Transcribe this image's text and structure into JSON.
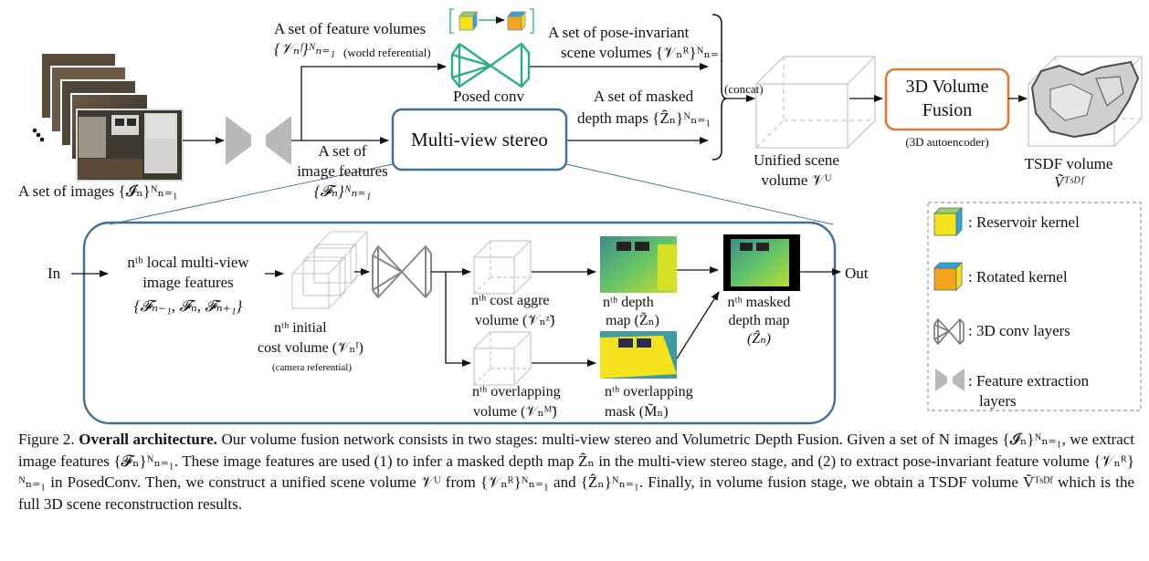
{
  "top": {
    "images_label": "A set of images {𝓘ₙ}ᴺₙ₌₁",
    "feature_volumes_line1": "A set of feature volumes",
    "feature_volumes_line2": "{𝒱ₙᶠ}ᴺₙ₌₁",
    "feature_volumes_note": "(world referential)",
    "posed_conv": "Posed conv",
    "pose_invariant_line1": "A set of pose-invariant",
    "pose_invariant_line2": "scene volumes {𝒱ₙᴿ}ᴺₙ₌₁",
    "masked_depth_line1": "A set of masked",
    "masked_depth_line2": "depth maps {Ẑₙ}ᴺₙ₌₁",
    "image_features_line1": "A set of",
    "image_features_line2": "image features",
    "image_features_line3": "{𝓕ₙ}ᴺₙ₌₁",
    "mvs_box": "Multi-view stereo",
    "concat": "(concat)",
    "unified_line1": "Unified scene",
    "unified_line2": "volume 𝒱ᵁ",
    "fusion_box_line1": "3D Volume",
    "fusion_box_line2": "Fusion",
    "autoencoder": "(3D autoencoder)",
    "tsdf_line1": "TSDF volume",
    "tsdf_line2": "Ṽᵀˢᴰᶠ"
  },
  "detail": {
    "in_label": "In",
    "out_label": "Out",
    "local_feat_line1": "nᵗʰ local multi-view",
    "local_feat_line2": "image features",
    "local_feat_line3": "{𝓕ₙ₋₁, 𝓕ₙ, 𝓕ₙ₊₁}",
    "initial_cost_line1": "nᵗʰ initial",
    "initial_cost_line2": "cost volume (𝒱ₙᴵ)",
    "initial_cost_note": "(camera referential)",
    "cost_aggre_line1": "nᵗʰ cost aggre",
    "cost_aggre_line2": "volume (𝒱ₙᶻ̃)",
    "depth_map_line1": "nᵗʰ depth",
    "depth_map_line2": "map (Z̃ₙ)",
    "masked_map_line1": "nᵗʰ masked",
    "masked_map_line2": "depth map",
    "masked_map_line3": "(Ẑₙ)",
    "overlap_vol_line1": "nᵗʰ overlapping",
    "overlap_vol_line2": "volume (𝒱ₙᴹ̃)",
    "overlap_mask_line1": "nᵗʰ overlapping",
    "overlap_mask_line2": "mask (M̃ₙ)"
  },
  "legend": {
    "reservoir": ": Reservoir kernel",
    "rotated": ": Rotated kernel",
    "conv3d": ": 3D conv layers",
    "feat_line1": ": Feature extraction",
    "feat_line2": "layers"
  },
  "caption": {
    "fig_label": "Figure 2.",
    "bold_title": "Overall architecture.",
    "body": "Our volume fusion network consists in two stages: multi-view stereo and Volumetric Depth Fusion. Given a set of N images {𝓘ₙ}ᴺₙ₌₁, we extract image features {𝓕ₙ}ᴺₙ₌₁. These image features are used (1) to infer a masked depth map Ẑₙ in the multi-view stereo stage, and (2) to extract pose-invariant feature volume {𝒱ₙᴿ}ᴺₙ₌₁ in PosedConv. Then, we construct a unified scene volume 𝒱ᵁ from {𝒱ₙᴿ}ᴺₙ₌₁ and {Ẑₙ}ᴺₙ₌₁. Finally, in volume fusion stage, we obtain a TSDF volume Ṽᵀˢᴰᶠ which is the full 3D scene reconstruction results."
  },
  "colors": {
    "mvs_border": "#3f6e99",
    "fusion_border": "#e07a32",
    "teal": "#2aae8e",
    "gray_shape": "#b9b9b9",
    "yellow": "#f5e21b",
    "blue": "#2aa6de",
    "green": "#8fd16a",
    "orange": "#f2a51c"
  }
}
